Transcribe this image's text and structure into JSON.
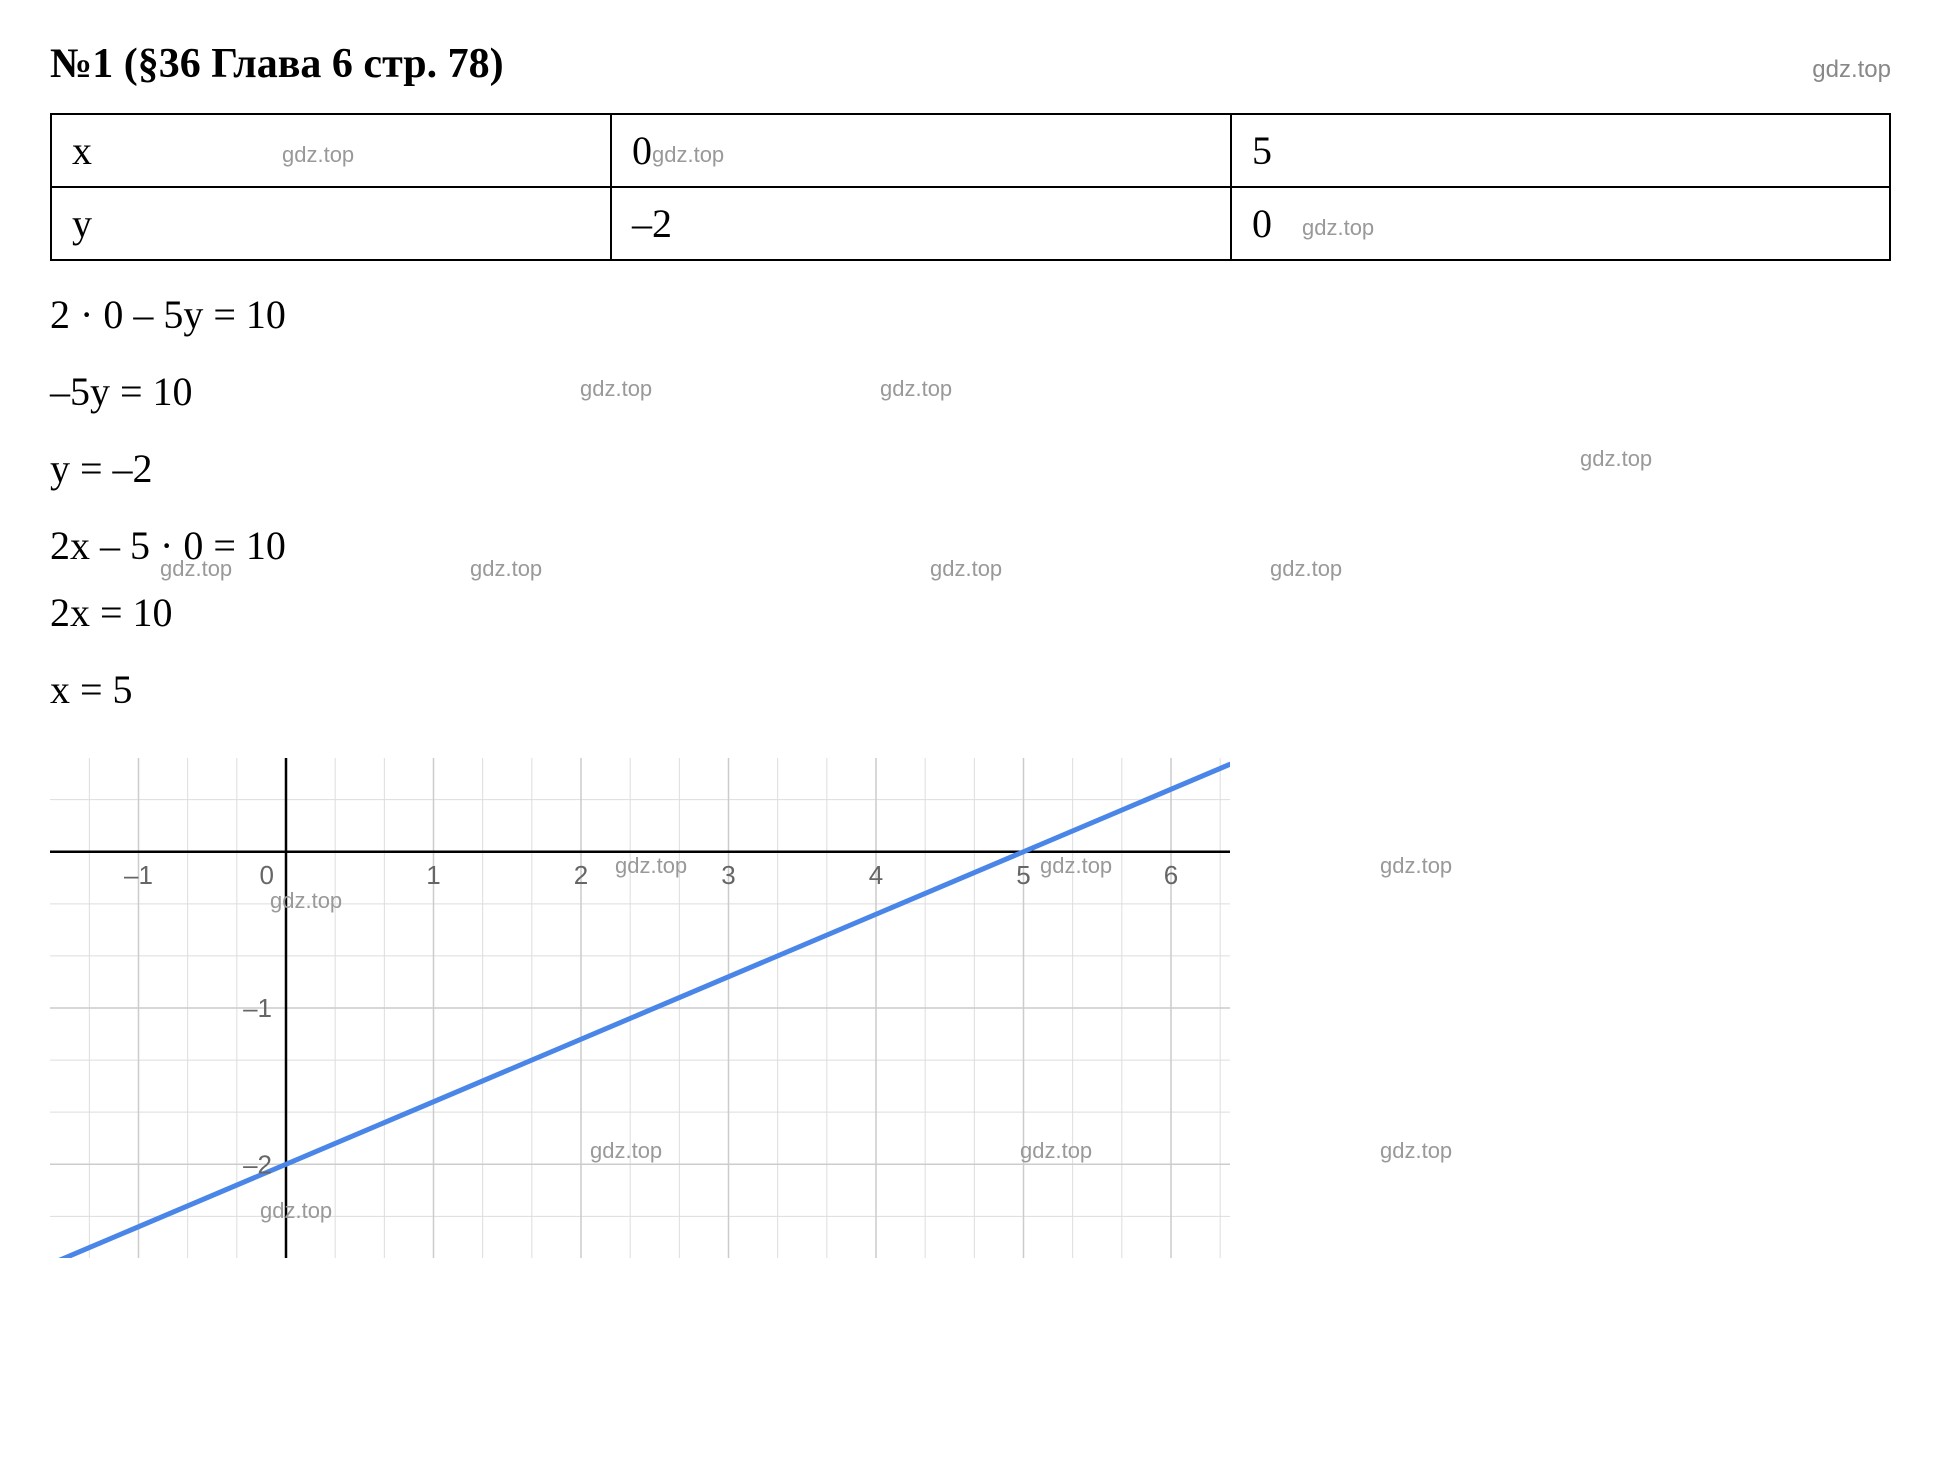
{
  "header": {
    "title": "№1 (§36 Глава 6  стр. 78)",
    "watermark": "gdz.top"
  },
  "table": {
    "rows": [
      {
        "label": "x",
        "val1": "0",
        "val2": "5",
        "wm_label": "gdz.top",
        "wm_val1": "gdz.top"
      },
      {
        "label": "y",
        "val1": "–2",
        "val2": "0",
        "wm_val2": "gdz.top"
      }
    ]
  },
  "equations": {
    "lines": [
      "2 · 0 – 5y = 10",
      "–5y = 10",
      "y = –2",
      "2x – 5 · 0 = 10",
      "2x = 10",
      "x = 5"
    ],
    "watermark": "gdz.top"
  },
  "chart": {
    "type": "line",
    "x_range": [
      -1.6,
      6.4
    ],
    "y_range": [
      -2.6,
      0.6
    ],
    "x_ticks": [
      -1,
      0,
      1,
      2,
      3,
      4,
      5,
      6
    ],
    "y_ticks": [
      -1,
      -2
    ],
    "grid_color": "#dddddd",
    "axis_color": "#000000",
    "line_color": "#4a86e8",
    "line_width": 5,
    "tick_label_color": "#666666",
    "tick_fontsize": 26,
    "line_points": [
      [
        -1.6,
        -2.64
      ],
      [
        6.4,
        0.56
      ]
    ],
    "background_color": "#ffffff",
    "watermark": "gdz.top"
  }
}
